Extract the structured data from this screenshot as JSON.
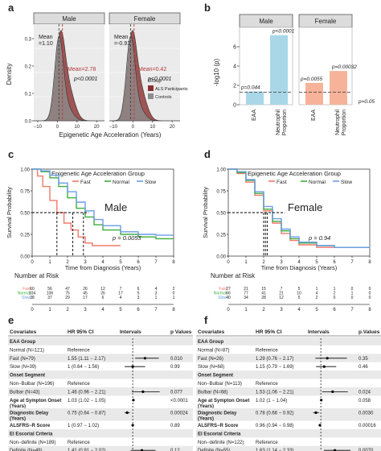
{
  "figure": {
    "panel_letters": [
      "a",
      "b",
      "c",
      "d",
      "e",
      "f"
    ],
    "colors": {
      "strip": "#dcdcdc",
      "als": "#8b2e2e",
      "controls": "#8c8c8c",
      "mean_line": "#b53a3a",
      "bar_blue": "#a9d7e8",
      "bar_orange": "#f6b39a",
      "fast": "#f2786a",
      "normal": "#3cae3c",
      "slow": "#6b9ce6",
      "row_shade": "#e9e9e9"
    }
  },
  "panel_a": {
    "strips": [
      "Male",
      "Female"
    ],
    "ylabel": "Density",
    "xlabel": "Epigenetic Age Acceleration (Years)",
    "xticks": [
      "−10",
      "0",
      "10",
      "20",
      "−10",
      "0",
      "10",
      "20"
    ],
    "yticks": [
      "0.0",
      "0.1",
      "0.2",
      "0.3"
    ],
    "male": {
      "mean_controls": "Mean\n=1.10",
      "mean_als": "Mean=2.78",
      "p": "p<0.0001"
    },
    "female": {
      "mean_controls": "Mean\n=-0.91",
      "mean_als": "Mean=0.42",
      "p": "p<0.0001"
    },
    "legend": {
      "title": "Group",
      "items": [
        "ALS Participants",
        "Controls"
      ]
    }
  },
  "panel_b": {
    "strips": [
      "Male",
      "Female"
    ],
    "ylabel": "-log10 (p)",
    "yticks": [
      "0",
      "2",
      "4",
      "6"
    ],
    "categories": [
      "EAA",
      "Neutrophil\nProportion"
    ],
    "p_labels": {
      "male_eaa": "p=0.044",
      "male_neut": "p<0.0001",
      "female_eaa": "p=0.0055",
      "female_neut": "p=0.00032",
      "threshold": "p=0.05"
    }
  },
  "chart_data": [
    {
      "type": "bar",
      "panel": "b-Male",
      "categories": [
        "EAA",
        "Neutrophil Proportion"
      ],
      "values": [
        1.36,
        7.2
      ],
      "ylabel": "-log10 (p)",
      "ylim": [
        0,
        8
      ],
      "threshold": 1.3
    },
    {
      "type": "bar",
      "panel": "b-Female",
      "categories": [
        "EAA",
        "Neutrophil Proportion"
      ],
      "values": [
        2.26,
        3.49
      ],
      "ylabel": "-log10 (p)",
      "ylim": [
        0,
        8
      ],
      "threshold": 1.3
    },
    {
      "type": "line",
      "panel": "c",
      "title": "Male",
      "ylabel": "Survival Probability",
      "xlabel": "Time from Diagnosis (Years)",
      "xlim": [
        0,
        8
      ],
      "ylim": [
        0,
        1
      ],
      "series": [
        {
          "name": "Fast",
          "x": [
            0,
            0.3,
            0.6,
            1,
            1.4,
            1.8,
            2.2,
            2.6,
            3,
            3.4,
            4,
            5
          ],
          "y": [
            1,
            0.92,
            0.8,
            0.64,
            0.5,
            0.38,
            0.3,
            0.22,
            0.15,
            0.12,
            0.12,
            0.12
          ]
        },
        {
          "name": "Normal",
          "x": [
            0,
            0.5,
            1,
            1.5,
            2,
            2.5,
            3,
            3.5,
            4,
            5,
            6,
            7,
            8
          ],
          "y": [
            1,
            0.97,
            0.9,
            0.8,
            0.67,
            0.55,
            0.45,
            0.36,
            0.3,
            0.25,
            0.22,
            0.2,
            0.2
          ]
        },
        {
          "name": "Slow",
          "x": [
            0,
            0.5,
            1,
            1.5,
            2,
            2.5,
            3,
            3.5,
            4,
            5,
            6,
            7,
            8
          ],
          "y": [
            1,
            0.98,
            0.93,
            0.84,
            0.74,
            0.62,
            0.52,
            0.42,
            0.35,
            0.28,
            0.25,
            0.24,
            0.24
          ]
        }
      ]
    },
    {
      "type": "line",
      "panel": "d",
      "title": "Female",
      "ylabel": "Survival Probability",
      "xlabel": "Time from Diagnosis (Years)",
      "xlim": [
        0,
        8
      ],
      "ylim": [
        0,
        1
      ],
      "series": [
        {
          "name": "Fast",
          "x": [
            0,
            0.5,
            1,
            1.5,
            2,
            2.5,
            3,
            3.5,
            4,
            5,
            6
          ],
          "y": [
            1,
            0.95,
            0.85,
            0.7,
            0.52,
            0.38,
            0.26,
            0.18,
            0.13,
            0.1,
            0.1
          ]
        },
        {
          "name": "Normal",
          "x": [
            0,
            0.5,
            1,
            1.5,
            2,
            2.5,
            3,
            3.5,
            4,
            5,
            6,
            7,
            8
          ],
          "y": [
            1,
            0.96,
            0.87,
            0.72,
            0.54,
            0.4,
            0.29,
            0.2,
            0.15,
            0.12,
            0.1,
            0.1,
            0.1
          ]
        },
        {
          "name": "Slow",
          "x": [
            0,
            0.5,
            1,
            1.5,
            2,
            2.5,
            3,
            3.5,
            4,
            5,
            6,
            7,
            8
          ],
          "y": [
            1,
            0.97,
            0.88,
            0.74,
            0.57,
            0.43,
            0.31,
            0.22,
            0.16,
            0.12,
            0.1,
            0.1,
            0.1
          ]
        }
      ]
    }
  ],
  "panel_c": {
    "legend_title": "Epigenetic Age Acceleration Group",
    "legend_items": [
      "Fast",
      "Normal",
      "Slow"
    ],
    "title": "Male",
    "p": "p = 0.0053",
    "ylabel": "Survival Probability",
    "xlabel": "Time from Diagnosis (Years)",
    "yticks": [
      "0.00",
      "0.25",
      "0.50",
      "0.75",
      "1.00"
    ],
    "xticks": [
      "0",
      "1",
      "2",
      "3",
      "4",
      "5",
      "6",
      "7",
      "8"
    ],
    "risk_title": "Number at Risk",
    "risk_rows": [
      {
        "label": "Fast",
        "values": [
          "60",
          "56",
          "47",
          "26",
          "12",
          "7",
          "6",
          "4",
          "2"
        ]
      },
      {
        "label": "Normal",
        "values": [
          "104",
          "106",
          "75",
          "45",
          "26",
          "17",
          "5",
          "3",
          "0"
        ]
      },
      {
        "label": "Slow",
        "values": [
          "38",
          "37",
          "29",
          "17",
          "6",
          "4",
          "3",
          "1",
          "1"
        ]
      }
    ]
  },
  "panel_d": {
    "legend_title": "Epigenetic Age Acceleration Group",
    "legend_items": [
      "Fast",
      "Normal",
      "Slow"
    ],
    "title": "Female",
    "p": "p = 0.94",
    "ylabel": "Survival Probability",
    "xlabel": "Time from Diagnosis (Years)",
    "yticks": [
      "0.00",
      "0.25",
      "0.50",
      "0.75",
      "1.00"
    ],
    "xticks": [
      "0",
      "1",
      "2",
      "3",
      "4",
      "5",
      "6",
      "7",
      "8"
    ],
    "risk_title": "Number at Risk",
    "risk_rows": [
      {
        "label": "Fast",
        "values": [
          "27",
          "21",
          "15",
          "7",
          "5",
          "1",
          "1",
          "0",
          "0"
        ]
      },
      {
        "label": "Normal",
        "values": [
          "66",
          "77",
          "41",
          "21",
          "10",
          "4",
          "2",
          "1",
          "0"
        ]
      },
      {
        "label": "Slow",
        "values": [
          "40",
          "34",
          "28",
          "12",
          "5",
          "2",
          "0",
          "0",
          "0"
        ]
      }
    ]
  },
  "panel_e": {
    "headers": [
      "Covariates",
      "HR 95% CI",
      "Intervals",
      "p Values"
    ],
    "xticks": [
      "1",
      "1.5",
      "2"
    ],
    "rows": [
      {
        "label": "EAA Group",
        "bold": true,
        "hr": "",
        "p": "",
        "est": null
      },
      {
        "label": "Normal (N=121)",
        "bold": false,
        "hr": "Reference",
        "p": "",
        "est": null
      },
      {
        "label": "Fast (N=79)",
        "bold": false,
        "hr": "1.55 (1.11 − 2.17)",
        "p": "0.010",
        "est": 1.55,
        "lo": 1.11,
        "hi": 2.17
      },
      {
        "label": "Slow (N=39)",
        "bold": false,
        "hr": "1 (0.64 − 1.56)",
        "p": "0.99",
        "est": 1.0,
        "lo": 0.64,
        "hi": 1.56
      },
      {
        "label": "Onset Segment",
        "bold": true,
        "hr": "",
        "p": "",
        "est": null
      },
      {
        "label": "Non−Bulbar (N=196)",
        "bold": false,
        "hr": "Reference",
        "p": "",
        "est": null
      },
      {
        "label": "Bulbar (N=43)",
        "bold": false,
        "hr": "1.46 (0.96 − 2.21)",
        "p": "0.077",
        "est": 1.46,
        "lo": 0.96,
        "hi": 2.21
      },
      {
        "label": "Age at Sympton Onset (Years)",
        "bold": true,
        "hr": "1.03 (1.02 − 1.05)",
        "p": "<0.0001",
        "est": 1.03,
        "lo": 1.02,
        "hi": 1.05
      },
      {
        "label": "Diagnostic Delay (Years)",
        "bold": true,
        "hr": "0.75 (0.64 − 0.87)",
        "p": "0.00024",
        "est": 0.75,
        "lo": 0.64,
        "hi": 0.87
      },
      {
        "label": "ALSFRS−R Score",
        "bold": true,
        "hr": "1 (0.97 − 1.02)",
        "p": "0.89",
        "est": 1.0,
        "lo": 0.97,
        "hi": 1.02
      },
      {
        "label": "El Escorial Criteria",
        "bold": true,
        "hr": "",
        "p": "",
        "est": null
      },
      {
        "label": "Non−definite (N=189)",
        "bold": false,
        "hr": "Reference",
        "p": "",
        "est": null
      },
      {
        "label": "Definite (N=49)",
        "bold": false,
        "hr": "1.41 (0.91 − 2.02)",
        "p": "0.12",
        "est": 1.41,
        "lo": 0.91,
        "hi": 2.02
      }
    ]
  },
  "panel_f": {
    "headers": [
      "Covariates",
      "HR 95% CI",
      "Intervals",
      "p.Values"
    ],
    "xticks": [
      "1",
      "1.5",
      "2"
    ],
    "rows": [
      {
        "label": "EAA Group",
        "bold": true,
        "hr": "",
        "p": "",
        "est": null
      },
      {
        "label": "Normal (N=87)",
        "bold": false,
        "hr": "Reference",
        "p": "",
        "est": null
      },
      {
        "label": "Fast (N=26)",
        "bold": false,
        "hr": "1.29 (0.76 − 2.17)",
        "p": "0.35",
        "est": 1.29,
        "lo": 0.76,
        "hi": 2.17
      },
      {
        "label": "Slow (N=68)",
        "bold": false,
        "hr": "1.15 (0.79 − 1.69)",
        "p": "0.46",
        "est": 1.15,
        "lo": 0.79,
        "hi": 1.69
      },
      {
        "label": "Onset Segment",
        "bold": true,
        "hr": "",
        "p": "",
        "est": null
      },
      {
        "label": "Non−Bulbar (N=113)",
        "bold": false,
        "hr": "Reference",
        "p": "",
        "est": null
      },
      {
        "label": "Bulbar (N=68)",
        "bold": false,
        "hr": "1.53 (1.06 − 2.21)",
        "p": "0.024",
        "est": 1.53,
        "lo": 1.06,
        "hi": 2.21
      },
      {
        "label": "Age at Sympton Onset (Years)",
        "bold": true,
        "hr": "1.02 (1 − 1.04)",
        "p": "0.058",
        "est": 1.02,
        "lo": 1.0,
        "hi": 1.04
      },
      {
        "label": "Diagnostic Delay (Years)",
        "bold": true,
        "hr": "0.78 (0.66 − 0.92)",
        "p": "0.0030",
        "est": 0.78,
        "lo": 0.66,
        "hi": 0.92
      },
      {
        "label": "ALSFRS−R Score",
        "bold": true,
        "hr": "0.96 (0.94 − 0.98)",
        "p": "0.00016",
        "est": 0.96,
        "lo": 0.94,
        "hi": 0.98
      },
      {
        "label": "El Escorial Criteria",
        "bold": true,
        "hr": "",
        "p": "",
        "est": null
      },
      {
        "label": "Non−definite (N=122)",
        "bold": false,
        "hr": "Reference",
        "p": "",
        "est": null
      },
      {
        "label": "Definite (N=55)",
        "bold": false,
        "hr": "1.63 (1.14 − 2.33)",
        "p": "0.0070",
        "est": 1.63,
        "lo": 1.14,
        "hi": 2.33
      }
    ]
  }
}
